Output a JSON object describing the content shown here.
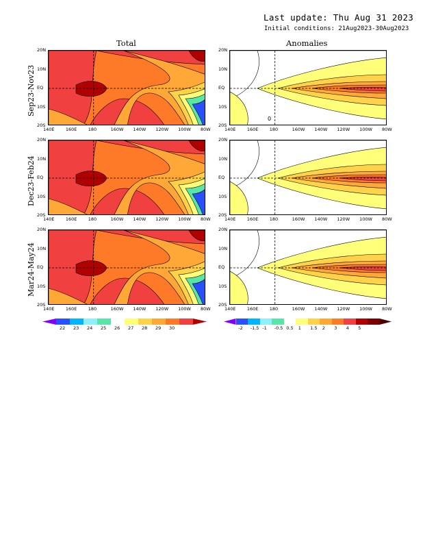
{
  "header": {
    "last_update": "Last update: Thu Aug 31 2023",
    "initial_conditions": "Initial conditions: 21Aug2023-30Aug2023"
  },
  "chart_data": {
    "type": "heatmap",
    "columns": [
      "Total",
      "Anomalies"
    ],
    "rows": [
      "Sep23-Nov23",
      "Dec23-Feb24",
      "Mar24-May24"
    ],
    "x_ticks": [
      "140E",
      "160E",
      "180",
      "160W",
      "140W",
      "120W",
      "100W",
      "80W"
    ],
    "y_ticks": [
      "20N",
      "10N",
      "EQ",
      "10S",
      "20S"
    ],
    "total_colorbar": {
      "labels": [
        "22",
        "23",
        "24",
        "25",
        "26",
        "27",
        "28",
        "29",
        "30"
      ],
      "colors": [
        "#8000ff",
        "#2850ff",
        "#00b4ff",
        "#8ef0ff",
        "#58e6a8",
        "#ffffff",
        "#ffff7a",
        "#ffd24a",
        "#ffa838",
        "#ff7a28",
        "#f04040",
        "#b00000"
      ]
    },
    "anomaly_colorbar": {
      "labels": [
        "-2",
        "-1.5",
        "-1",
        "-0.5",
        "0.5",
        "1",
        "1.5",
        "2",
        "3",
        "4",
        "5"
      ],
      "colors": [
        "#8000ff",
        "#2850ff",
        "#00b4ff",
        "#8ef0ff",
        "#58e6a8",
        "#ffffff",
        "#ffff7a",
        "#ffd24a",
        "#ffa838",
        "#ff7a28",
        "#f04040",
        "#b00000",
        "#7a0000",
        "#4a0000"
      ]
    },
    "contour_marker": "0",
    "grid": "dashed lines at EQ and 180"
  }
}
